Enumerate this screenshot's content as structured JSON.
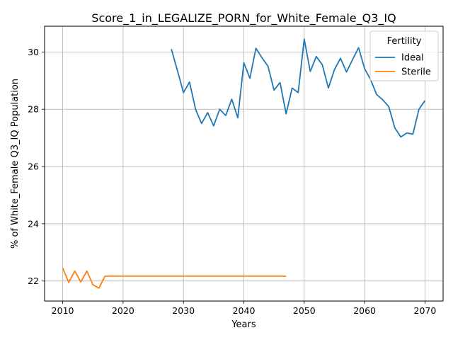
{
  "chart_data": {
    "type": "line",
    "title": "Score_1_in_LEGALIZE_PORN_for_White_Female_Q3_IQ",
    "xlabel": "Years",
    "ylabel": "% of White_Female Q3_IQ Population",
    "xlim": [
      2007,
      2073
    ],
    "ylim": [
      21.3,
      30.9
    ],
    "xticks": [
      2010,
      2020,
      2030,
      2040,
      2050,
      2060,
      2070
    ],
    "yticks": [
      22,
      24,
      26,
      28,
      30
    ],
    "grid": true,
    "legend": {
      "title": "Fertility",
      "position": "top-right"
    },
    "series": [
      {
        "name": "Ideal",
        "color": "#1f77b4",
        "x": [
          2028,
          2029,
          2030,
          2031,
          2032,
          2033,
          2034,
          2035,
          2036,
          2037,
          2038,
          2039,
          2040,
          2041,
          2042,
          2043,
          2044,
          2045,
          2046,
          2047,
          2048,
          2049,
          2050,
          2051,
          2052,
          2053,
          2054,
          2055,
          2056,
          2057,
          2058,
          2059,
          2060,
          2061,
          2062,
          2063,
          2064,
          2065,
          2066,
          2067,
          2068,
          2069,
          2070
        ],
        "y": [
          30.1,
          29.35,
          28.58,
          28.95,
          28.0,
          27.5,
          27.88,
          27.42,
          28.0,
          27.78,
          28.35,
          27.7,
          29.62,
          29.08,
          30.13,
          29.8,
          29.5,
          28.67,
          28.93,
          27.84,
          28.74,
          28.58,
          30.45,
          29.32,
          29.84,
          29.55,
          28.74,
          29.38,
          29.78,
          29.3,
          29.73,
          30.15,
          29.42,
          29.03,
          28.51,
          28.33,
          28.09,
          27.35,
          27.03,
          27.17,
          27.13,
          28.0,
          28.3
        ]
      },
      {
        "name": "Sterile",
        "color": "#ff7f0e",
        "x": [
          2010,
          2011,
          2012,
          2013,
          2014,
          2015,
          2016,
          2017,
          2018,
          2019,
          2020,
          2021,
          2022,
          2023,
          2024,
          2025,
          2026,
          2027,
          2028,
          2029,
          2030,
          2031,
          2032,
          2033,
          2034,
          2035,
          2036,
          2037,
          2038,
          2039,
          2040,
          2041,
          2042,
          2043,
          2044,
          2045,
          2046,
          2047
        ],
        "y": [
          22.45,
          21.95,
          22.35,
          21.97,
          22.35,
          21.87,
          21.75,
          22.17,
          22.17,
          22.17,
          22.17,
          22.17,
          22.17,
          22.17,
          22.17,
          22.17,
          22.17,
          22.17,
          22.17,
          22.17,
          22.17,
          22.17,
          22.17,
          22.17,
          22.17,
          22.17,
          22.17,
          22.17,
          22.17,
          22.17,
          22.17,
          22.17,
          22.17,
          22.17,
          22.17,
          22.17,
          22.17,
          22.17
        ]
      }
    ]
  }
}
